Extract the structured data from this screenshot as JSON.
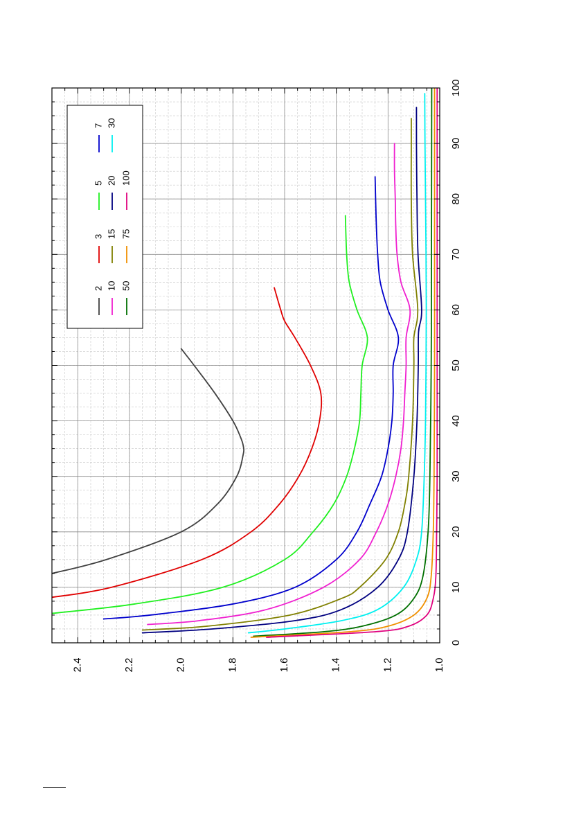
{
  "chart_data": {
    "type": "line",
    "title": "",
    "xlabel": "",
    "ylabel": "",
    "orientation": "rotated 90° counter-clockwise on page",
    "xlim": [
      0,
      100
    ],
    "ylim": [
      1.0,
      2.5
    ],
    "x_ticks": [
      "0",
      "10",
      "20",
      "30",
      "40",
      "50",
      "60",
      "70",
      "80",
      "90",
      "100"
    ],
    "y_ticks": [
      "1.0",
      "1.2",
      "1.4",
      "1.6",
      "1.8",
      "2.0",
      "2.2",
      "2.4"
    ],
    "grid": true,
    "legend_position": "top-left",
    "series": [
      {
        "name": "2",
        "color": "#404040",
        "x": [
          12.5,
          15,
          20,
          25,
          30,
          34,
          35.5,
          37,
          40,
          45,
          50,
          53
        ],
        "y": [
          2.5,
          2.29,
          2.0,
          1.86,
          1.785,
          1.76,
          1.76,
          1.77,
          1.8,
          1.87,
          1.95,
          2.0
        ]
      },
      {
        "name": "3",
        "color": "#e00000",
        "x": [
          8.2,
          10,
          15,
          20,
          25,
          30,
          35,
          40,
          45,
          50,
          55,
          58,
          60,
          64
        ],
        "y": [
          2.5,
          2.27,
          1.92,
          1.73,
          1.62,
          1.545,
          1.495,
          1.465,
          1.46,
          1.5,
          1.56,
          1.6,
          1.615,
          1.64
        ]
      },
      {
        "name": "5",
        "color": "#20f020",
        "x": [
          5.3,
          7,
          10,
          15,
          20,
          25,
          30,
          35,
          40,
          45,
          50,
          55,
          60,
          65,
          70,
          77
        ],
        "y": [
          2.5,
          2.18,
          1.84,
          1.6,
          1.49,
          1.41,
          1.36,
          1.33,
          1.31,
          1.305,
          1.3,
          1.28,
          1.32,
          1.35,
          1.36,
          1.365
        ]
      },
      {
        "name": "7",
        "color": "#0000cc",
        "x": [
          4.3,
          5,
          7,
          10,
          15,
          20,
          25,
          30,
          35,
          40,
          45,
          50,
          55,
          60,
          65,
          70,
          75,
          80,
          84
        ],
        "y": [
          2.3,
          2.12,
          1.8,
          1.56,
          1.4,
          1.32,
          1.27,
          1.225,
          1.2,
          1.185,
          1.18,
          1.18,
          1.16,
          1.2,
          1.23,
          1.24,
          1.245,
          1.248,
          1.25
        ]
      },
      {
        "name": "10",
        "color": "#f020d0",
        "x": [
          3.3,
          4,
          6,
          10,
          15,
          20,
          25,
          30,
          35,
          40,
          45,
          50,
          55,
          60,
          65,
          70,
          75,
          80,
          85,
          90
        ],
        "y": [
          2.13,
          1.93,
          1.67,
          1.45,
          1.31,
          1.245,
          1.2,
          1.17,
          1.15,
          1.14,
          1.135,
          1.13,
          1.13,
          1.115,
          1.15,
          1.165,
          1.17,
          1.172,
          1.175,
          1.175
        ]
      },
      {
        "name": "15",
        "color": "#808000",
        "x": [
          2.3,
          3,
          5,
          8,
          10,
          15,
          20,
          25,
          30,
          40,
          50,
          55,
          60,
          70,
          80,
          90,
          94.5
        ],
        "y": [
          2.15,
          1.9,
          1.58,
          1.38,
          1.31,
          1.21,
          1.16,
          1.135,
          1.12,
          1.105,
          1.1,
          1.1,
          1.085,
          1.105,
          1.11,
          1.11,
          1.11
        ]
      },
      {
        "name": "20",
        "color": "#000080",
        "x": [
          1.8,
          2.5,
          4,
          6,
          10,
          15,
          20,
          30,
          40,
          50,
          56,
          60,
          70,
          80,
          90,
          96.5
        ],
        "y": [
          2.15,
          1.88,
          1.56,
          1.38,
          1.24,
          1.16,
          1.125,
          1.1,
          1.088,
          1.083,
          1.082,
          1.07,
          1.084,
          1.088,
          1.09,
          1.09
        ]
      },
      {
        "name": "30",
        "color": "#00f0f0",
        "x": [
          1.8,
          2.5,
          4,
          6,
          10,
          15,
          20,
          30,
          40,
          50,
          60,
          70,
          80,
          90,
          99
        ],
        "y": [
          1.74,
          1.6,
          1.38,
          1.24,
          1.14,
          1.09,
          1.07,
          1.06,
          1.055,
          1.053,
          1.052,
          1.053,
          1.055,
          1.057,
          1.058
        ]
      },
      {
        "name": "50",
        "color": "#007000",
        "x": [
          1.2,
          2,
          3,
          5,
          8,
          12,
          20,
          30,
          50,
          70,
          100
        ],
        "y": [
          1.72,
          1.45,
          1.3,
          1.17,
          1.1,
          1.065,
          1.045,
          1.038,
          1.033,
          1.032,
          1.031
        ]
      },
      {
        "name": "75",
        "color": "#f09000",
        "x": [
          1.0,
          2,
          3,
          5,
          8,
          12,
          20,
          30,
          50,
          70,
          100
        ],
        "y": [
          1.73,
          1.35,
          1.2,
          1.1,
          1.05,
          1.033,
          1.025,
          1.022,
          1.02,
          1.02,
          1.02
        ]
      },
      {
        "name": "100",
        "color": "#e0007e",
        "x": [
          1.0,
          2,
          3,
          5,
          8,
          12,
          20,
          30,
          50,
          70,
          100
        ],
        "y": [
          1.67,
          1.25,
          1.12,
          1.05,
          1.025,
          1.015,
          1.012,
          1.01,
          1.01,
          1.01,
          1.01
        ]
      }
    ]
  }
}
